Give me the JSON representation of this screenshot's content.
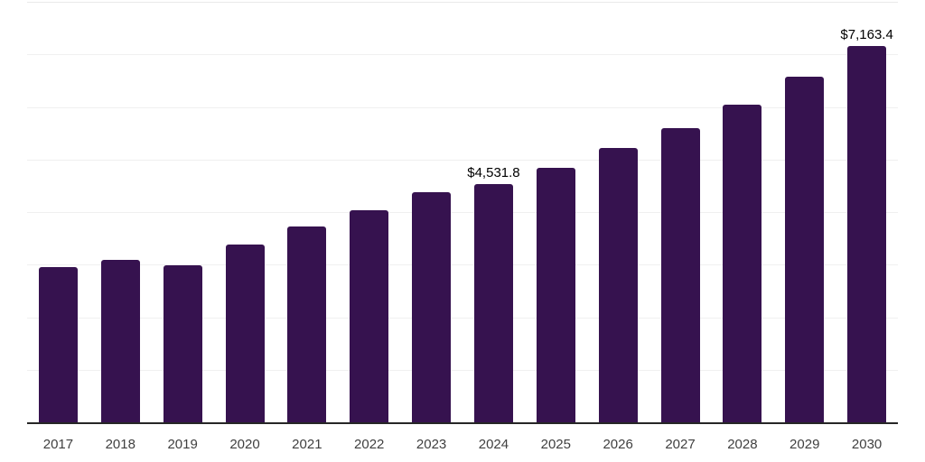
{
  "chart_data": {
    "type": "bar",
    "title": "",
    "xlabel": "",
    "ylabel": "",
    "categories": [
      "2017",
      "2018",
      "2019",
      "2020",
      "2021",
      "2022",
      "2023",
      "2024",
      "2025",
      "2026",
      "2027",
      "2028",
      "2029",
      "2030"
    ],
    "values": [
      2945,
      3090,
      2980,
      3380,
      3725,
      4035,
      4375,
      4531.8,
      4840,
      5215,
      5600,
      6045,
      6580,
      7163.4
    ],
    "data_labels": [
      {
        "category": "2024",
        "text": "$4,531.8"
      },
      {
        "category": "2030",
        "text": "$7,163.4"
      }
    ],
    "ylim": [
      0,
      8000
    ],
    "gridline_step": 1000,
    "grid": "horizontal-only",
    "legend": "none",
    "y_axis_tick_labels": "none",
    "colors": {
      "bar": "#36124f",
      "gridline": "#f0f0f0",
      "axis_line": "#262626",
      "tick_label": "#404040",
      "data_label": "#000000"
    }
  }
}
